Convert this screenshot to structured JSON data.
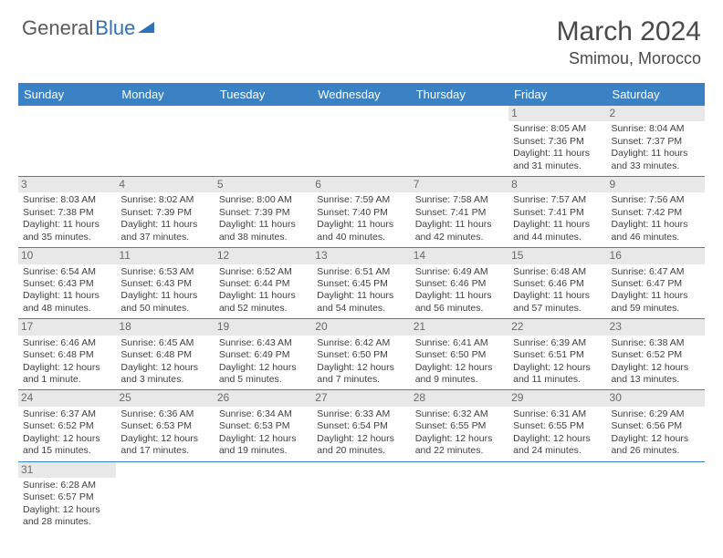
{
  "logo": {
    "text1": "General",
    "text2": "Blue"
  },
  "title": "March 2024",
  "location": "Smimou, Morocco",
  "colors": {
    "header_bg": "#3b82c4",
    "header_text": "#ffffff",
    "daynum_bg": "#e8e8e8",
    "daynum_text": "#6a6a6a",
    "body_text": "#3f3f3f",
    "rule": "#3b82c4",
    "logo_gray": "#5a5a5a",
    "logo_blue": "#2f71b8"
  },
  "day_names": [
    "Sunday",
    "Monday",
    "Tuesday",
    "Wednesday",
    "Thursday",
    "Friday",
    "Saturday"
  ],
  "weeks": [
    [
      {
        "n": "",
        "sr": "",
        "ss": "",
        "dl": ""
      },
      {
        "n": "",
        "sr": "",
        "ss": "",
        "dl": ""
      },
      {
        "n": "",
        "sr": "",
        "ss": "",
        "dl": ""
      },
      {
        "n": "",
        "sr": "",
        "ss": "",
        "dl": ""
      },
      {
        "n": "",
        "sr": "",
        "ss": "",
        "dl": ""
      },
      {
        "n": "1",
        "sr": "Sunrise: 8:05 AM",
        "ss": "Sunset: 7:36 PM",
        "dl": "Daylight: 11 hours and 31 minutes."
      },
      {
        "n": "2",
        "sr": "Sunrise: 8:04 AM",
        "ss": "Sunset: 7:37 PM",
        "dl": "Daylight: 11 hours and 33 minutes."
      }
    ],
    [
      {
        "n": "3",
        "sr": "Sunrise: 8:03 AM",
        "ss": "Sunset: 7:38 PM",
        "dl": "Daylight: 11 hours and 35 minutes."
      },
      {
        "n": "4",
        "sr": "Sunrise: 8:02 AM",
        "ss": "Sunset: 7:39 PM",
        "dl": "Daylight: 11 hours and 37 minutes."
      },
      {
        "n": "5",
        "sr": "Sunrise: 8:00 AM",
        "ss": "Sunset: 7:39 PM",
        "dl": "Daylight: 11 hours and 38 minutes."
      },
      {
        "n": "6",
        "sr": "Sunrise: 7:59 AM",
        "ss": "Sunset: 7:40 PM",
        "dl": "Daylight: 11 hours and 40 minutes."
      },
      {
        "n": "7",
        "sr": "Sunrise: 7:58 AM",
        "ss": "Sunset: 7:41 PM",
        "dl": "Daylight: 11 hours and 42 minutes."
      },
      {
        "n": "8",
        "sr": "Sunrise: 7:57 AM",
        "ss": "Sunset: 7:41 PM",
        "dl": "Daylight: 11 hours and 44 minutes."
      },
      {
        "n": "9",
        "sr": "Sunrise: 7:56 AM",
        "ss": "Sunset: 7:42 PM",
        "dl": "Daylight: 11 hours and 46 minutes."
      }
    ],
    [
      {
        "n": "10",
        "sr": "Sunrise: 6:54 AM",
        "ss": "Sunset: 6:43 PM",
        "dl": "Daylight: 11 hours and 48 minutes."
      },
      {
        "n": "11",
        "sr": "Sunrise: 6:53 AM",
        "ss": "Sunset: 6:43 PM",
        "dl": "Daylight: 11 hours and 50 minutes."
      },
      {
        "n": "12",
        "sr": "Sunrise: 6:52 AM",
        "ss": "Sunset: 6:44 PM",
        "dl": "Daylight: 11 hours and 52 minutes."
      },
      {
        "n": "13",
        "sr": "Sunrise: 6:51 AM",
        "ss": "Sunset: 6:45 PM",
        "dl": "Daylight: 11 hours and 54 minutes."
      },
      {
        "n": "14",
        "sr": "Sunrise: 6:49 AM",
        "ss": "Sunset: 6:46 PM",
        "dl": "Daylight: 11 hours and 56 minutes."
      },
      {
        "n": "15",
        "sr": "Sunrise: 6:48 AM",
        "ss": "Sunset: 6:46 PM",
        "dl": "Daylight: 11 hours and 57 minutes."
      },
      {
        "n": "16",
        "sr": "Sunrise: 6:47 AM",
        "ss": "Sunset: 6:47 PM",
        "dl": "Daylight: 11 hours and 59 minutes."
      }
    ],
    [
      {
        "n": "17",
        "sr": "Sunrise: 6:46 AM",
        "ss": "Sunset: 6:48 PM",
        "dl": "Daylight: 12 hours and 1 minute."
      },
      {
        "n": "18",
        "sr": "Sunrise: 6:45 AM",
        "ss": "Sunset: 6:48 PM",
        "dl": "Daylight: 12 hours and 3 minutes."
      },
      {
        "n": "19",
        "sr": "Sunrise: 6:43 AM",
        "ss": "Sunset: 6:49 PM",
        "dl": "Daylight: 12 hours and 5 minutes."
      },
      {
        "n": "20",
        "sr": "Sunrise: 6:42 AM",
        "ss": "Sunset: 6:50 PM",
        "dl": "Daylight: 12 hours and 7 minutes."
      },
      {
        "n": "21",
        "sr": "Sunrise: 6:41 AM",
        "ss": "Sunset: 6:50 PM",
        "dl": "Daylight: 12 hours and 9 minutes."
      },
      {
        "n": "22",
        "sr": "Sunrise: 6:39 AM",
        "ss": "Sunset: 6:51 PM",
        "dl": "Daylight: 12 hours and 11 minutes."
      },
      {
        "n": "23",
        "sr": "Sunrise: 6:38 AM",
        "ss": "Sunset: 6:52 PM",
        "dl": "Daylight: 12 hours and 13 minutes."
      }
    ],
    [
      {
        "n": "24",
        "sr": "Sunrise: 6:37 AM",
        "ss": "Sunset: 6:52 PM",
        "dl": "Daylight: 12 hours and 15 minutes."
      },
      {
        "n": "25",
        "sr": "Sunrise: 6:36 AM",
        "ss": "Sunset: 6:53 PM",
        "dl": "Daylight: 12 hours and 17 minutes."
      },
      {
        "n": "26",
        "sr": "Sunrise: 6:34 AM",
        "ss": "Sunset: 6:53 PM",
        "dl": "Daylight: 12 hours and 19 minutes."
      },
      {
        "n": "27",
        "sr": "Sunrise: 6:33 AM",
        "ss": "Sunset: 6:54 PM",
        "dl": "Daylight: 12 hours and 20 minutes."
      },
      {
        "n": "28",
        "sr": "Sunrise: 6:32 AM",
        "ss": "Sunset: 6:55 PM",
        "dl": "Daylight: 12 hours and 22 minutes."
      },
      {
        "n": "29",
        "sr": "Sunrise: 6:31 AM",
        "ss": "Sunset: 6:55 PM",
        "dl": "Daylight: 12 hours and 24 minutes."
      },
      {
        "n": "30",
        "sr": "Sunrise: 6:29 AM",
        "ss": "Sunset: 6:56 PM",
        "dl": "Daylight: 12 hours and 26 minutes."
      }
    ],
    [
      {
        "n": "31",
        "sr": "Sunrise: 6:28 AM",
        "ss": "Sunset: 6:57 PM",
        "dl": "Daylight: 12 hours and 28 minutes."
      },
      {
        "n": "",
        "sr": "",
        "ss": "",
        "dl": ""
      },
      {
        "n": "",
        "sr": "",
        "ss": "",
        "dl": ""
      },
      {
        "n": "",
        "sr": "",
        "ss": "",
        "dl": ""
      },
      {
        "n": "",
        "sr": "",
        "ss": "",
        "dl": ""
      },
      {
        "n": "",
        "sr": "",
        "ss": "",
        "dl": ""
      },
      {
        "n": "",
        "sr": "",
        "ss": "",
        "dl": ""
      }
    ]
  ]
}
